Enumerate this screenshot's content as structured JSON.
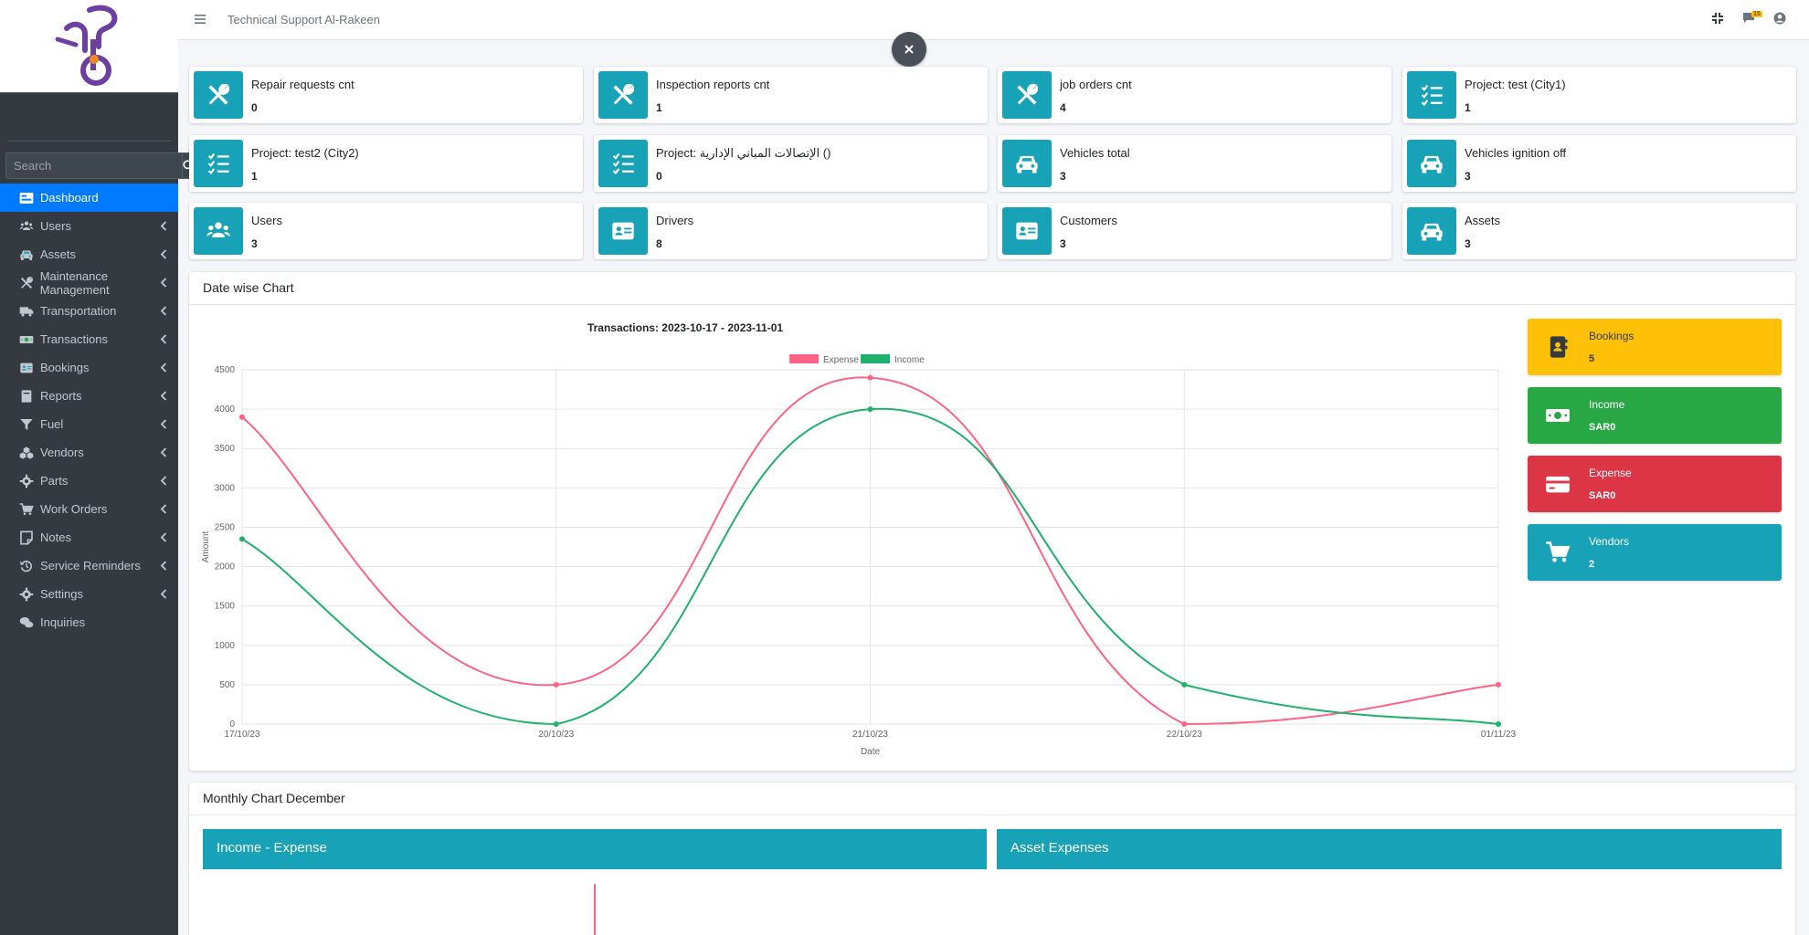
{
  "app": {
    "brand": "Technical Support Al-Rakeen",
    "notification_count": "15"
  },
  "sidebar": {
    "search_placeholder": "Search",
    "items": [
      {
        "label": "Dashboard",
        "icon": "dashboard-icon",
        "active": true
      },
      {
        "label": "Users",
        "icon": "users-icon"
      },
      {
        "label": "Assets",
        "icon": "car-icon"
      },
      {
        "label": "Maintenance Management",
        "icon": "tools-icon"
      },
      {
        "label": "Transportation",
        "icon": "truck-icon"
      },
      {
        "label": "Transactions",
        "icon": "money-icon"
      },
      {
        "label": "Bookings",
        "icon": "id-card-icon"
      },
      {
        "label": "Reports",
        "icon": "book-icon"
      },
      {
        "label": "Fuel",
        "icon": "filter-icon"
      },
      {
        "label": "Vendors",
        "icon": "cubes-icon"
      },
      {
        "label": "Parts",
        "icon": "gear-icon"
      },
      {
        "label": "Work Orders",
        "icon": "cart-icon"
      },
      {
        "label": "Notes",
        "icon": "note-icon"
      },
      {
        "label": "Service Reminders",
        "icon": "history-icon"
      },
      {
        "label": "Settings",
        "icon": "gear-icon"
      },
      {
        "label": "Inquiries",
        "icon": "comments-icon"
      }
    ]
  },
  "info_boxes": [
    {
      "label": "Repair requests cnt",
      "value": "0",
      "icon": "tools-icon"
    },
    {
      "label": "Inspection reports cnt",
      "value": "1",
      "icon": "tools-icon"
    },
    {
      "label": "job orders cnt",
      "value": "4",
      "icon": "tools-icon"
    },
    {
      "label": "Project: test (City1)",
      "value": "1",
      "icon": "checklist-icon"
    },
    {
      "label": "Project: test2 (City2)",
      "value": "1",
      "icon": "checklist-icon"
    },
    {
      "label": "Project: الإتصالات المباني الإدارية ()",
      "value": "0",
      "icon": "checklist-icon"
    },
    {
      "label": "Vehicles total",
      "value": "3",
      "icon": "car-icon"
    },
    {
      "label": "Vehicles ignition off",
      "value": "3",
      "icon": "car-icon"
    },
    {
      "label": "Users",
      "value": "3",
      "icon": "users-icon"
    },
    {
      "label": "Drivers",
      "value": "8",
      "icon": "id-card-icon"
    },
    {
      "label": "Customers",
      "value": "3",
      "icon": "id-card-icon"
    },
    {
      "label": "Assets",
      "value": "3",
      "icon": "car-icon"
    }
  ],
  "date_chart_card": {
    "title": "Date wise Chart"
  },
  "chart_data": {
    "type": "line",
    "title": "Transactions: 2023-10-17 - 2023-11-01",
    "xlabel": "Date",
    "ylabel": "Amount",
    "categories": [
      "17/10/23",
      "20/10/23",
      "21/10/23",
      "22/10/23",
      "01/11/23"
    ],
    "ylim": [
      0,
      4500
    ],
    "yticks": [
      "0",
      "500",
      "1000",
      "1500",
      "2000",
      "2500",
      "3000",
      "3500",
      "4000",
      "4500"
    ],
    "legend_position": "top",
    "series": [
      {
        "name": "Expense",
        "color": "#ff6384",
        "values": [
          3900,
          500,
          4400,
          0,
          500
        ]
      },
      {
        "name": "Income",
        "color": "#20b26c",
        "values": [
          2350,
          0,
          4000,
          500,
          0
        ]
      }
    ]
  },
  "summary_boxes": [
    {
      "label": "Bookings",
      "value": "5",
      "color": "#ffc107",
      "text_color": "#343a40",
      "icon": "address-book-icon"
    },
    {
      "label": "Income",
      "value": "SAR0",
      "color": "#28a745",
      "text_color": "#ffffff",
      "icon": "money-icon"
    },
    {
      "label": "Expense",
      "value": "SAR0",
      "color": "#dc3545",
      "text_color": "#ffffff",
      "icon": "credit-card-icon"
    },
    {
      "label": "Vendors",
      "value": "2",
      "color": "#17a2b8",
      "text_color": "#ffffff",
      "icon": "cart-icon"
    }
  ],
  "monthly_card": {
    "title": "Monthly Chart December"
  },
  "panels": [
    {
      "title": "Income - Expense"
    },
    {
      "title": "Asset Expenses"
    }
  ]
}
